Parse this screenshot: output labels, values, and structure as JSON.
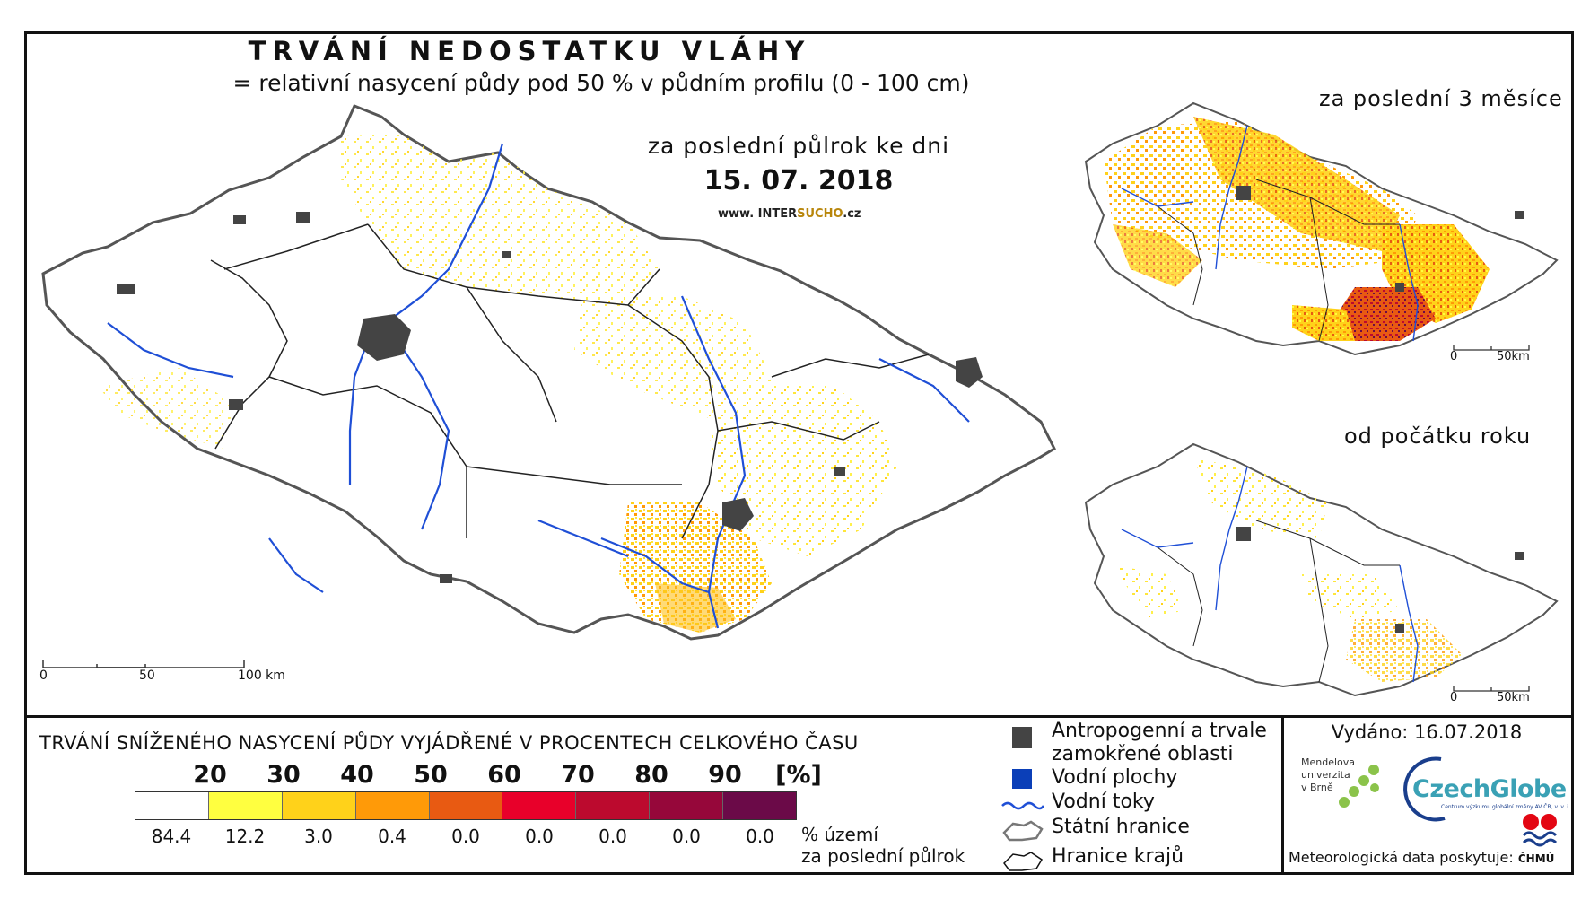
{
  "header": {
    "title": "TRVÁNÍ NEDOSTATKU VLÁHY",
    "subtitle": "= relativní nasycení půdy pod 50 % v půdním profilu (0 - 100 cm)",
    "period": "za poslední půlrok ke dni",
    "date": "15. 07. 2018",
    "web_prefix": "www. INTER",
    "web_highlight": "SUCHO",
    "web_suffix": ".cz"
  },
  "main_map": {
    "scalebar": {
      "t0": "0",
      "t1": "50",
      "t2": "100 km"
    }
  },
  "inset_top": {
    "label": "za poslední 3 měsíce",
    "scalebar": {
      "t0": "0",
      "t1": "50km"
    }
  },
  "inset_bottom": {
    "label": "od počátku roku",
    "scalebar": {
      "t0": "0",
      "t1": "50km"
    }
  },
  "legend": {
    "title": "TRVÁNÍ SNÍŽENÉHO NASYCENÍ PŮDY VYJÁDŘENÉ V PROCENTECH CELKOVÉHO ČASU",
    "thresholds": [
      "20",
      "30",
      "40",
      "50",
      "60",
      "70",
      "80",
      "90"
    ],
    "unit": "[%]",
    "colors": [
      "#ffffff",
      "#ffff40",
      "#ffd21a",
      "#ff9a08",
      "#e85a12",
      "#e8002a",
      "#bc0a2e",
      "#96073a",
      "#6b0a48"
    ],
    "percentages": [
      "84.4",
      "12.2",
      "3.0",
      "0.4",
      "0.0",
      "0.0",
      "0.0",
      "0.0",
      "0.0"
    ],
    "pct_caption_1": "% území",
    "pct_caption_2": "za poslední půlrok"
  },
  "symbols": {
    "anthropogenic_1": "Antropogenní a trvale",
    "anthropogenic_2": "zamokřené oblasti",
    "water_bodies": "Vodní plochy",
    "rivers": "Vodní toky",
    "state_border": "Státní hranice",
    "region_border": "Hranice krajů"
  },
  "credits": {
    "issued": "Vydáno: 16.07.2018",
    "mendel_1": "Mendelova",
    "mendel_2": "univerzita",
    "mendel_3": "v Brně",
    "czechglobe": "CzechGlobe",
    "czechglobe_sub": "Centrum výzkumu globální změny AV ČR, v. v. i.",
    "provider": "Meteorologická data poskytuje:",
    "chmu": "ČHMÚ"
  }
}
